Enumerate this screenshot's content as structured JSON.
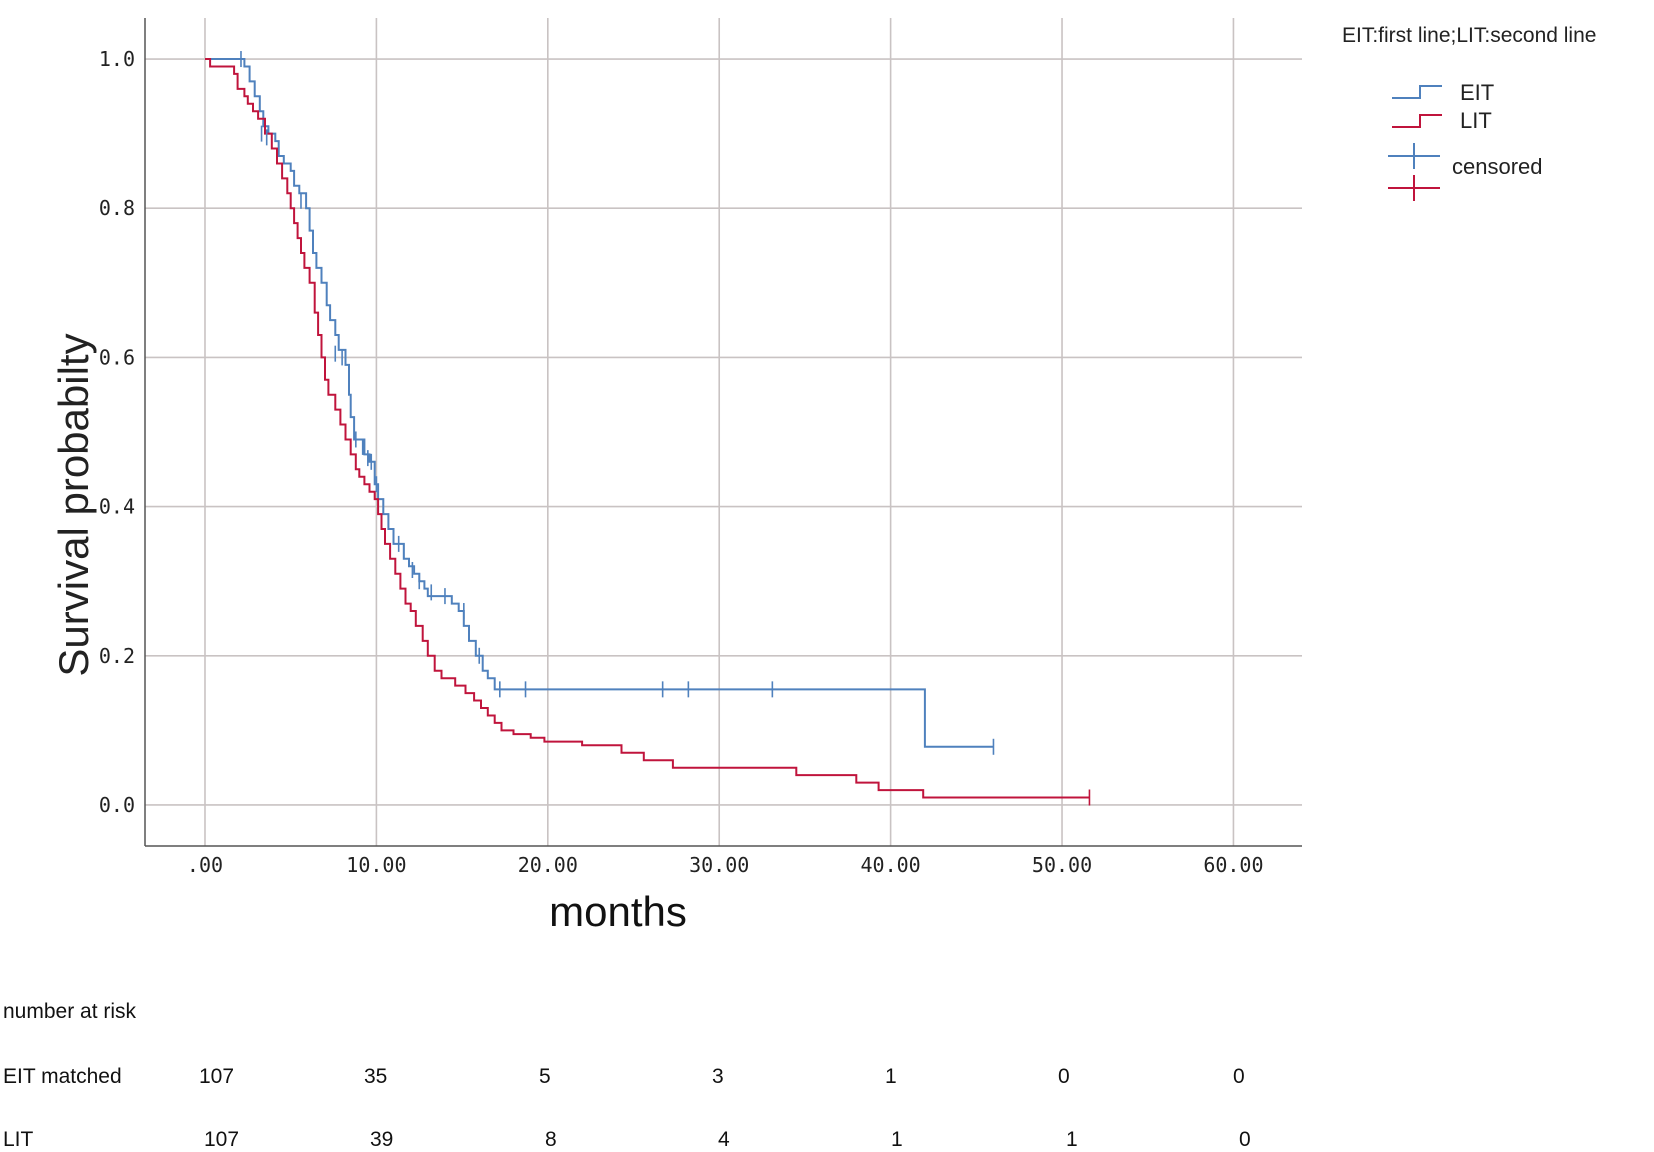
{
  "chart_data": {
    "type": "line",
    "ylabel": "Survival probabilty",
    "xlabel": "months",
    "xlim": [
      -3.5,
      64
    ],
    "ylim": [
      -0.055,
      1.055
    ],
    "x_ticks": [
      0,
      10,
      20,
      30,
      40,
      50,
      60
    ],
    "x_tick_labels": [
      ".00",
      "10.00",
      "20.00",
      "30.00",
      "40.00",
      "50.00",
      "60.00"
    ],
    "y_ticks": [
      0,
      0.2,
      0.4,
      0.6,
      0.8,
      1.0
    ],
    "y_tick_labels": [
      "0.0",
      "0.2",
      "0.4",
      "0.6",
      "0.8",
      "1.0"
    ],
    "grid": true,
    "legend": {
      "title": "EIT:first line;LIT:second line",
      "placement": "right",
      "entries": [
        "EIT",
        "LIT"
      ],
      "censored_label": "censored"
    },
    "series": [
      {
        "name": "EIT",
        "color": "#4f81bd",
        "steps": [
          [
            0,
            1.0
          ],
          [
            2.3,
            0.99
          ],
          [
            2.6,
            0.97
          ],
          [
            2.9,
            0.95
          ],
          [
            3.2,
            0.93
          ],
          [
            3.4,
            0.91
          ],
          [
            3.7,
            0.9
          ],
          [
            4.1,
            0.89
          ],
          [
            4.3,
            0.87
          ],
          [
            4.6,
            0.86
          ],
          [
            5.0,
            0.85
          ],
          [
            5.2,
            0.83
          ],
          [
            5.5,
            0.82
          ],
          [
            5.9,
            0.8
          ],
          [
            6.1,
            0.77
          ],
          [
            6.3,
            0.74
          ],
          [
            6.5,
            0.72
          ],
          [
            6.8,
            0.7
          ],
          [
            7.1,
            0.67
          ],
          [
            7.3,
            0.65
          ],
          [
            7.6,
            0.63
          ],
          [
            7.8,
            0.61
          ],
          [
            8.2,
            0.59
          ],
          [
            8.4,
            0.55
          ],
          [
            8.5,
            0.52
          ],
          [
            8.7,
            0.49
          ],
          [
            9.3,
            0.47
          ],
          [
            9.6,
            0.46
          ],
          [
            9.9,
            0.43
          ],
          [
            10.1,
            0.41
          ],
          [
            10.4,
            0.39
          ],
          [
            10.7,
            0.37
          ],
          [
            11.0,
            0.35
          ],
          [
            11.6,
            0.33
          ],
          [
            11.9,
            0.32
          ],
          [
            12.2,
            0.31
          ],
          [
            12.5,
            0.3
          ],
          [
            12.8,
            0.29
          ],
          [
            13.0,
            0.28
          ],
          [
            14.4,
            0.27
          ],
          [
            14.8,
            0.26
          ],
          [
            15.1,
            0.24
          ],
          [
            15.4,
            0.22
          ],
          [
            15.8,
            0.2
          ],
          [
            16.2,
            0.18
          ],
          [
            16.5,
            0.17
          ],
          [
            16.9,
            0.155
          ],
          [
            42.0,
            0.078
          ],
          [
            46.0,
            0.078
          ]
        ],
        "censored": [
          [
            2.1,
            1.0
          ],
          [
            3.3,
            0.9
          ],
          [
            3.6,
            0.895
          ],
          [
            5.6,
            0.81
          ],
          [
            7.6,
            0.605
          ],
          [
            8.0,
            0.6
          ],
          [
            8.8,
            0.49
          ],
          [
            9.2,
            0.48
          ],
          [
            9.5,
            0.465
          ],
          [
            9.7,
            0.46
          ],
          [
            10.0,
            0.43
          ],
          [
            11.3,
            0.35
          ],
          [
            11.6,
            0.34
          ],
          [
            12.1,
            0.315
          ],
          [
            12.5,
            0.3
          ],
          [
            13.2,
            0.285
          ],
          [
            14.0,
            0.28
          ],
          [
            15.1,
            0.26
          ],
          [
            16.0,
            0.2
          ],
          [
            17.2,
            0.155
          ],
          [
            18.7,
            0.155
          ],
          [
            26.7,
            0.155
          ],
          [
            28.2,
            0.155
          ],
          [
            33.1,
            0.155
          ],
          [
            46.0,
            0.078
          ]
        ]
      },
      {
        "name": "LIT",
        "color": "#c0143c",
        "steps": [
          [
            0,
            1.0
          ],
          [
            0.3,
            0.99
          ],
          [
            1.7,
            0.98
          ],
          [
            1.9,
            0.96
          ],
          [
            2.3,
            0.95
          ],
          [
            2.5,
            0.94
          ],
          [
            2.8,
            0.93
          ],
          [
            3.1,
            0.92
          ],
          [
            3.5,
            0.9
          ],
          [
            3.9,
            0.88
          ],
          [
            4.2,
            0.86
          ],
          [
            4.5,
            0.84
          ],
          [
            4.8,
            0.82
          ],
          [
            5.0,
            0.8
          ],
          [
            5.2,
            0.78
          ],
          [
            5.4,
            0.76
          ],
          [
            5.6,
            0.74
          ],
          [
            5.8,
            0.72
          ],
          [
            6.1,
            0.7
          ],
          [
            6.4,
            0.66
          ],
          [
            6.6,
            0.63
          ],
          [
            6.8,
            0.6
          ],
          [
            7.0,
            0.57
          ],
          [
            7.2,
            0.55
          ],
          [
            7.6,
            0.53
          ],
          [
            7.9,
            0.51
          ],
          [
            8.2,
            0.49
          ],
          [
            8.5,
            0.47
          ],
          [
            8.8,
            0.45
          ],
          [
            9.0,
            0.44
          ],
          [
            9.3,
            0.43
          ],
          [
            9.6,
            0.42
          ],
          [
            9.9,
            0.41
          ],
          [
            10.1,
            0.39
          ],
          [
            10.3,
            0.37
          ],
          [
            10.5,
            0.35
          ],
          [
            10.8,
            0.33
          ],
          [
            11.1,
            0.31
          ],
          [
            11.4,
            0.29
          ],
          [
            11.7,
            0.27
          ],
          [
            12.0,
            0.26
          ],
          [
            12.3,
            0.24
          ],
          [
            12.7,
            0.22
          ],
          [
            13.0,
            0.2
          ],
          [
            13.4,
            0.18
          ],
          [
            13.8,
            0.17
          ],
          [
            14.6,
            0.16
          ],
          [
            15.2,
            0.15
          ],
          [
            15.7,
            0.14
          ],
          [
            16.1,
            0.13
          ],
          [
            16.5,
            0.12
          ],
          [
            16.9,
            0.11
          ],
          [
            17.3,
            0.1
          ],
          [
            18.0,
            0.095
          ],
          [
            19.0,
            0.09
          ],
          [
            19.8,
            0.085
          ],
          [
            22.0,
            0.08
          ],
          [
            24.3,
            0.07
          ],
          [
            25.6,
            0.06
          ],
          [
            27.3,
            0.05
          ],
          [
            29.0,
            0.05
          ],
          [
            34.5,
            0.04
          ],
          [
            38.0,
            0.03
          ],
          [
            39.3,
            0.02
          ],
          [
            41.9,
            0.01
          ],
          [
            51.6,
            0.01
          ]
        ],
        "censored": [
          [
            51.6,
            0.01
          ]
        ]
      }
    ]
  },
  "risk_table": {
    "header": "number at risk",
    "rows": [
      {
        "label": "EIT matched",
        "values": [
          "107",
          "35",
          "5",
          "3",
          "1",
          "0",
          "0"
        ]
      },
      {
        "label": "LIT",
        "values": [
          "107",
          "39",
          "8",
          "4",
          "1",
          "1",
          "0"
        ]
      }
    ]
  }
}
